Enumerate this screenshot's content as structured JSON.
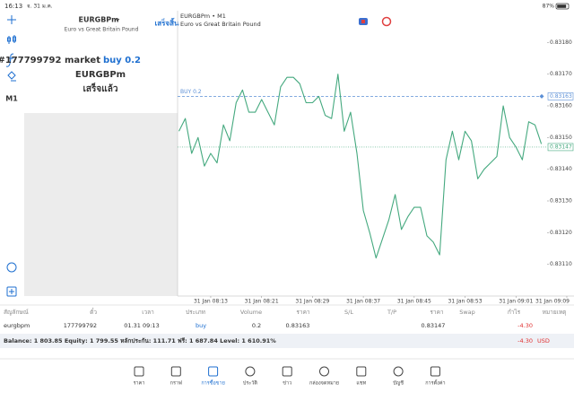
{
  "status_bar": {
    "time": "16:13",
    "date": "จ. 31 ม.ค.",
    "battery": "87%"
  },
  "toolbar": {
    "timeframe": "M1"
  },
  "order_panel": {
    "symbol": "EURGBPm",
    "description": "Euro vs Great Britain Pound",
    "done_button": "เสร็จสิ้น",
    "message": {
      "ticket": "#177799792 market",
      "action": "buy 0.2",
      "symbol": "EURGBPm",
      "status": "เสร็จแล้ว"
    }
  },
  "chart_data": {
    "type": "line",
    "title": "EURGBPm • M1",
    "subtitle": "Euro vs Great Britain Pound",
    "color": "#45a97f",
    "categories": [
      null,
      null,
      null,
      null,
      null,
      "31 Jan 08:13",
      null,
      null,
      null,
      null,
      null,
      null,
      null,
      "31 Jan 08:21",
      null,
      null,
      null,
      null,
      null,
      null,
      null,
      "31 Jan 08:29",
      null,
      null,
      null,
      null,
      null,
      null,
      null,
      "31 Jan 08:37",
      null,
      null,
      null,
      null,
      null,
      null,
      null,
      "31 Jan 08:45",
      null,
      null,
      null,
      null,
      null,
      null,
      null,
      "31 Jan 08:53",
      null,
      null,
      null,
      null,
      null,
      null,
      null,
      "31 Jan 09:01",
      null,
      null,
      null,
      null,
      null,
      null,
      null,
      "31 Jan 09:09"
    ],
    "values": [
      0.83152,
      0.83156,
      0.83145,
      0.8315,
      0.83141,
      0.83145,
      0.83142,
      0.83154,
      0.83149,
      0.83161,
      0.83165,
      0.83158,
      0.83158,
      0.83162,
      0.83158,
      0.83154,
      0.83166,
      0.83169,
      0.83169,
      0.83167,
      0.83161,
      0.83161,
      0.83163,
      0.83157,
      0.83156,
      0.8317,
      0.83152,
      0.83158,
      0.83145,
      0.83127,
      0.8312,
      0.83112,
      0.83118,
      0.83124,
      0.83132,
      0.83121,
      0.83125,
      0.83128,
      0.83128,
      0.83119,
      0.83117,
      0.83113,
      0.83143,
      0.83152,
      0.83143,
      0.83152,
      0.83149,
      0.83137,
      0.8314,
      0.83142,
      0.83144,
      0.8316,
      0.8315,
      0.83147,
      0.83143,
      0.83155,
      0.83154,
      0.83148,
      null,
      null,
      null,
      null
    ],
    "ylim": [
      0.831,
      0.8319
    ],
    "yticks": [
      {
        "value": 0.8311,
        "label": "0.83110"
      },
      {
        "value": 0.8312,
        "label": "0.83120"
      },
      {
        "value": 0.8313,
        "label": "0.83130"
      },
      {
        "value": 0.8314,
        "label": "0.83140"
      },
      {
        "value": 0.8315,
        "label": "0.83150"
      },
      {
        "value": 0.8316,
        "label": "0.83160"
      },
      {
        "value": 0.8317,
        "label": "0.83170"
      },
      {
        "value": 0.8318,
        "label": "0.83180"
      }
    ],
    "buy_line": {
      "label": "BUY 0.2",
      "value": 0.83163,
      "color": "#5b8fd6"
    },
    "bid_line": {
      "value": 0.83147,
      "color": "#45a97f"
    },
    "grid": false
  },
  "positions": {
    "columns": [
      "สัญลักษณ์",
      "ตั๋ว",
      "เวลา",
      "ประเภท",
      "Volume",
      "ราคา",
      "S/L",
      "T/P",
      "ราคา",
      "Swap",
      "กำไร",
      "หมายเหตุ"
    ],
    "rows": [
      {
        "symbol": "eurgbpm",
        "ticket": "177799792",
        "time": "01.31 09:13",
        "type": "buy",
        "volume": "0.2",
        "price_open": "0.83163",
        "price_current": "0.83147",
        "profit": "-4.30"
      }
    ],
    "summary": "Balance: 1 803.85 Equity: 1 799.55 หลักประกัน: 111.71 ฟรี: 1 687.84 Level: 1 610.91%",
    "total_profit": "-4.30",
    "currency": "USD"
  },
  "nav": [
    "ราคา",
    "กราฟ",
    "การซื้อขาย",
    "ประวัติ",
    "ข่าว",
    "กล่องจดหมาย",
    "แชท",
    "บัญชี",
    "การตั้งค่า"
  ]
}
